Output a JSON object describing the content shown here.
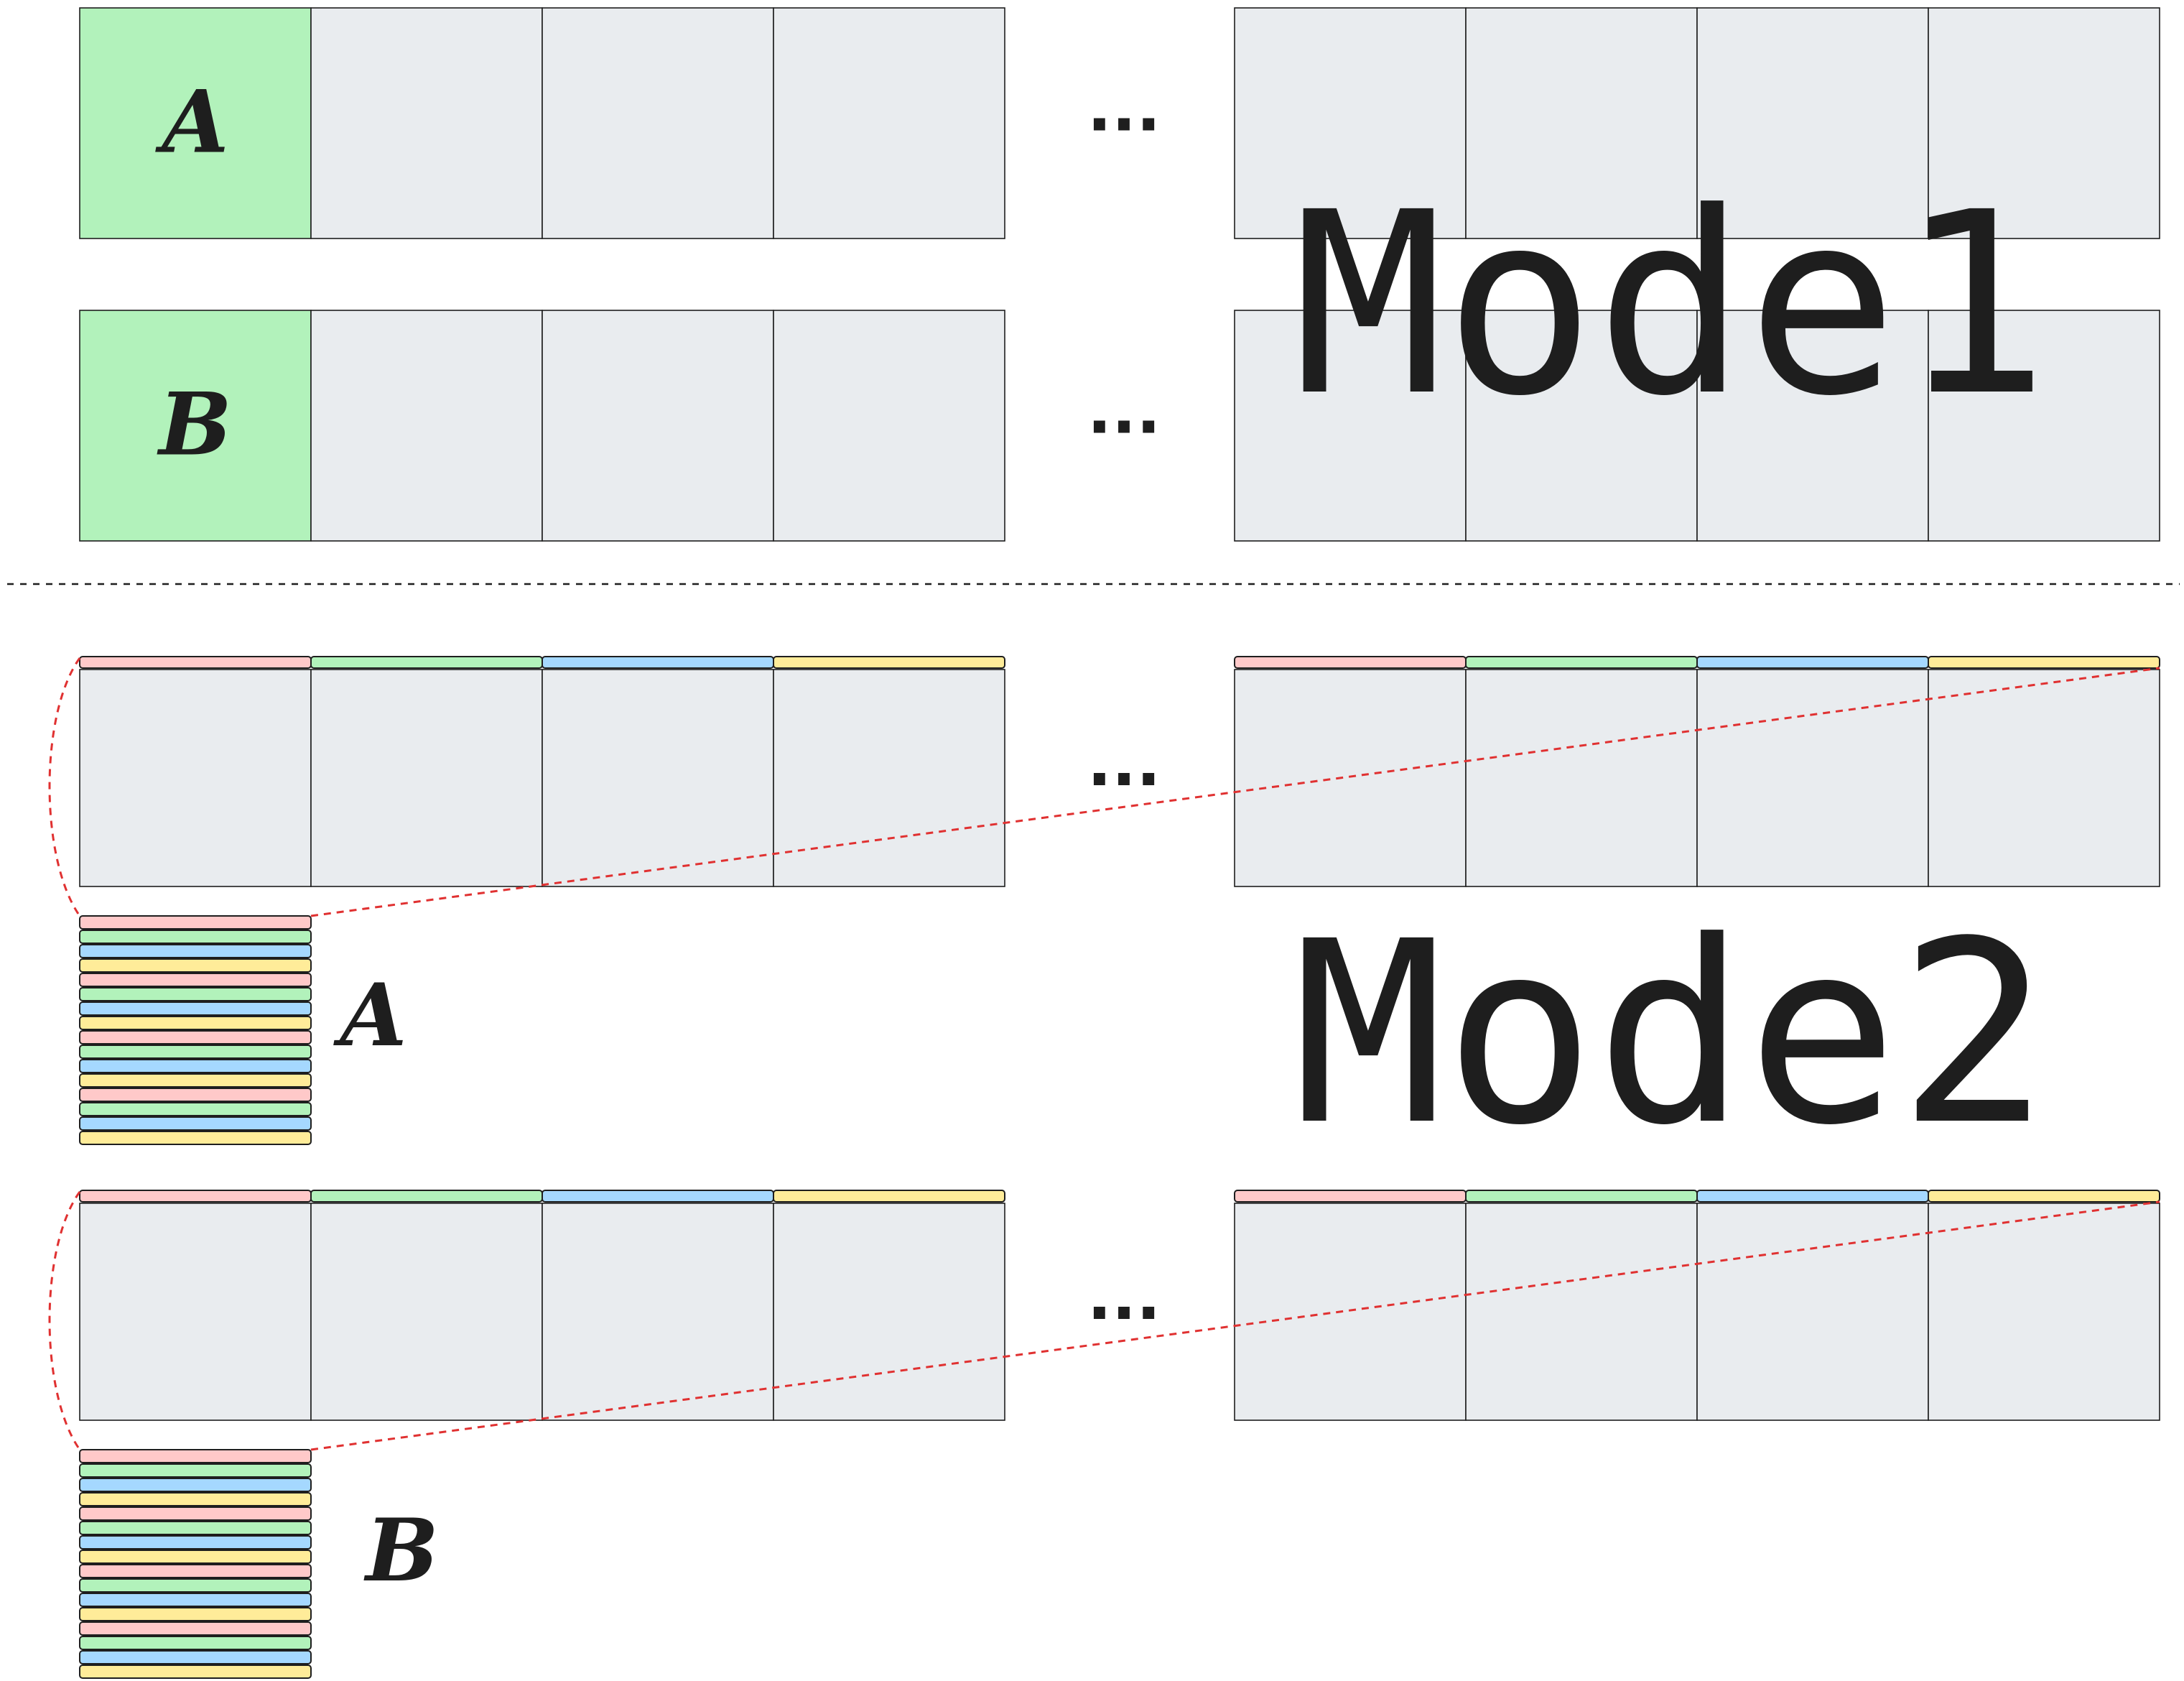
{
  "colors": {
    "cell_fill": "#e9ecef",
    "highlight_fill": "#b2f2bb",
    "stripe_colors": [
      "#ffc9c9",
      "#b2f2bb",
      "#a5d8ff",
      "#ffec99"
    ],
    "outline": "#1e1e1e",
    "connector": "#e03131"
  },
  "mode1": {
    "label": "Mode1",
    "rows": [
      {
        "letter": "A",
        "ellipsis": "..."
      },
      {
        "letter": "B",
        "ellipsis": "..."
      }
    ]
  },
  "mode2": {
    "label": "Mode2",
    "rows": [
      {
        "letter": "A",
        "ellipsis": "..."
      },
      {
        "letter": "B",
        "ellipsis": "..."
      }
    ]
  }
}
